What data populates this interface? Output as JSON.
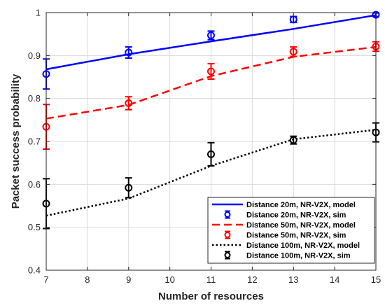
{
  "chart_data": {
    "type": "line",
    "xlabel": "Number of resources",
    "ylabel": "Packet success probability",
    "xlim": [
      7,
      15
    ],
    "ylim": [
      0.4,
      1
    ],
    "x_ticks": [
      "7",
      "8",
      "9",
      "10",
      "11",
      "12",
      "13",
      "14",
      "15"
    ],
    "y_ticks": [
      "0.4",
      "0.5",
      "0.6",
      "0.7",
      "0.8",
      "0.9",
      "1"
    ],
    "grid": true,
    "legend_position": "bottom-right",
    "x": [
      7,
      9,
      11,
      13,
      15
    ],
    "series": [
      {
        "name": "Distance 20m, NR-V2X, model",
        "kind": "line",
        "style": "solid",
        "color": "#0000ff",
        "values": [
          0.868,
          0.903,
          0.933,
          0.962,
          0.994
        ]
      },
      {
        "name": "Distance 20m, NR-V2X, sim",
        "kind": "errorbar",
        "color": "#0000ff",
        "values": [
          0.857,
          0.907,
          0.947,
          0.984,
          0.995
        ],
        "errors": [
          0.035,
          0.013,
          0.01,
          0.007,
          0.004
        ]
      },
      {
        "name": "Distance 50m, NR-V2X, model",
        "kind": "line",
        "style": "dashed",
        "color": "#ff0000",
        "values": [
          0.753,
          0.785,
          0.852,
          0.897,
          0.92
        ]
      },
      {
        "name": "Distance 50m, NR-V2X, sim",
        "kind": "errorbar",
        "color": "#ff0000",
        "values": [
          0.734,
          0.789,
          0.863,
          0.909,
          0.921
        ],
        "errors": [
          0.052,
          0.015,
          0.018,
          0.011,
          0.011
        ]
      },
      {
        "name": "Distance 100m, NR-V2X, model",
        "kind": "line",
        "style": "dotted",
        "color": "#000000",
        "values": [
          0.527,
          0.567,
          0.643,
          0.705,
          0.727
        ]
      },
      {
        "name": "Distance 100m, NR-V2X, sim",
        "kind": "errorbar",
        "color": "#000000",
        "values": [
          0.555,
          0.592,
          0.67,
          0.703,
          0.721
        ],
        "errors": [
          0.058,
          0.023,
          0.027,
          0.009,
          0.022
        ]
      }
    ]
  }
}
